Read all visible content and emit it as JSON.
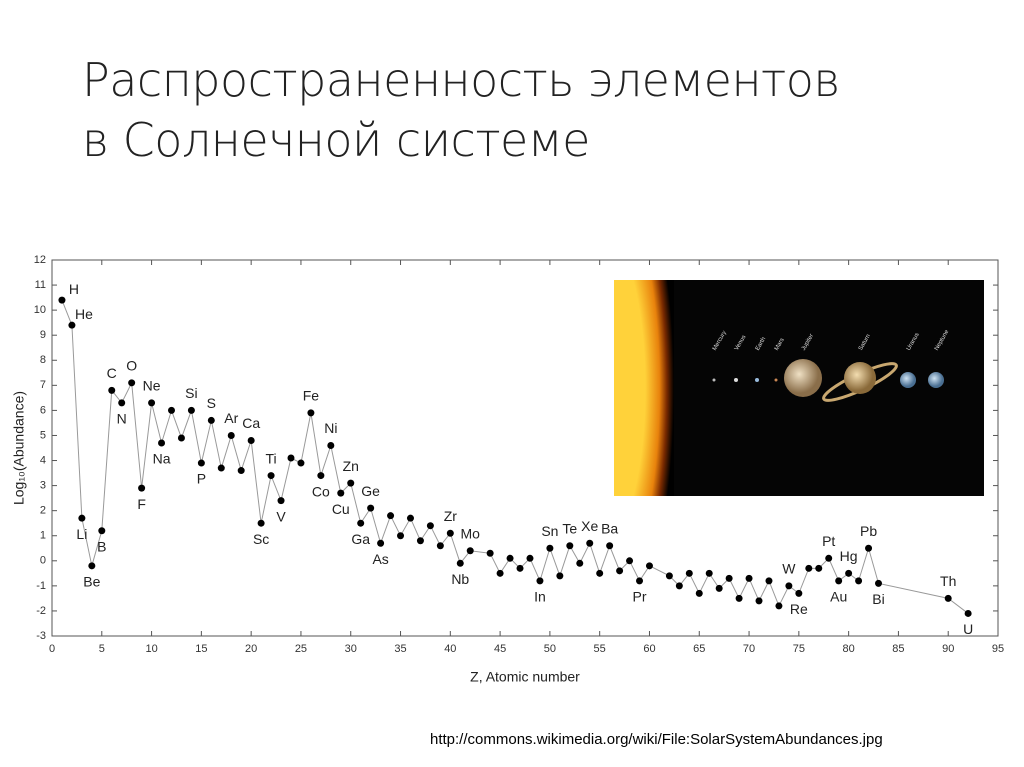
{
  "slide_title": [
    "Распространенность элементов",
    "в Солнечной системе"
  ],
  "source_url": "http://commons.wikimedia.org/wiki/File:SolarSystemAbundances.jpg",
  "image": {
    "planet_labels": [
      "Mercury",
      "Venus",
      "Earth",
      "Mars",
      "Jupiter",
      "Saturn",
      "Uranus",
      "Neptune"
    ]
  },
  "chart_data": {
    "type": "line",
    "x_label": "Z, Atomic number",
    "y_label": "Log₁₀(Abundance)",
    "x": [
      1,
      2,
      3,
      4,
      5,
      6,
      7,
      8,
      9,
      10,
      11,
      12,
      13,
      14,
      15,
      16,
      17,
      18,
      19,
      20,
      21,
      22,
      23,
      24,
      25,
      26,
      27,
      28,
      29,
      30,
      31,
      32,
      33,
      34,
      35,
      36,
      37,
      38,
      39,
      40,
      41,
      42,
      44,
      45,
      46,
      47,
      48,
      49,
      50,
      51,
      52,
      53,
      54,
      55,
      56,
      57,
      58,
      59,
      60,
      62,
      63,
      64,
      65,
      66,
      67,
      68,
      69,
      70,
      71,
      72,
      73,
      74,
      75,
      76,
      77,
      78,
      79,
      80,
      81,
      82,
      83,
      90,
      92
    ],
    "values": [
      10.4,
      9.4,
      1.7,
      -0.2,
      1.2,
      6.8,
      6.3,
      7.1,
      2.9,
      6.3,
      4.7,
      6.0,
      4.9,
      6.0,
      3.9,
      5.6,
      3.7,
      5.0,
      3.6,
      4.8,
      1.5,
      3.4,
      2.4,
      4.1,
      3.9,
      5.9,
      3.4,
      4.6,
      2.7,
      3.1,
      1.5,
      2.1,
      0.7,
      1.8,
      1.0,
      1.7,
      0.8,
      1.4,
      0.6,
      1.1,
      -0.1,
      0.4,
      0.3,
      -0.5,
      0.1,
      -0.3,
      0.1,
      -0.8,
      0.5,
      -0.6,
      0.6,
      -0.1,
      0.7,
      -0.5,
      0.6,
      -0.4,
      0.0,
      -0.8,
      -0.2,
      -0.6,
      -1.0,
      -0.5,
      -1.3,
      -0.5,
      -1.1,
      -0.7,
      -1.5,
      -0.7,
      -1.6,
      -0.8,
      -1.8,
      -1.0,
      -1.3,
      -0.3,
      -0.3,
      0.1,
      -0.8,
      -0.5,
      -0.8,
      0.5,
      -0.9,
      -1.5,
      -2.1
    ],
    "point_labels": [
      "H",
      "He",
      "Li",
      "Be",
      "B",
      "C",
      "N",
      "O",
      "F",
      "Ne",
      "Na",
      null,
      null,
      "Si",
      "P",
      "S",
      null,
      "Ar",
      null,
      "Ca",
      "Sc",
      "Ti",
      "V",
      null,
      null,
      "Fe",
      "Co",
      "Ni",
      "Cu",
      "Zn",
      "Ga",
      "Ge",
      "As",
      null,
      null,
      null,
      null,
      null,
      null,
      "Zr",
      "Nb",
      "Mo",
      null,
      null,
      null,
      null,
      null,
      "In",
      "Sn",
      null,
      "Te",
      null,
      "Xe",
      null,
      "Ba",
      null,
      null,
      "Pr",
      null,
      null,
      null,
      null,
      null,
      null,
      null,
      null,
      null,
      null,
      null,
      null,
      null,
      "W",
      "Re",
      null,
      null,
      "Pt",
      "Au",
      "Hg",
      null,
      "Pb",
      "Bi",
      "Th",
      "U"
    ],
    "color": "#999999",
    "marker_color": "#000000",
    "xlim": [
      0,
      95
    ],
    "xticks": [
      0,
      5,
      10,
      15,
      20,
      25,
      30,
      35,
      40,
      45,
      50,
      55,
      60,
      65,
      70,
      75,
      80,
      85,
      90,
      95
    ],
    "ylim": [
      -3,
      12
    ],
    "yticks": [
      -3,
      -2,
      -1,
      0,
      1,
      2,
      3,
      4,
      5,
      6,
      7,
      8,
      9,
      10,
      11,
      12
    ]
  }
}
